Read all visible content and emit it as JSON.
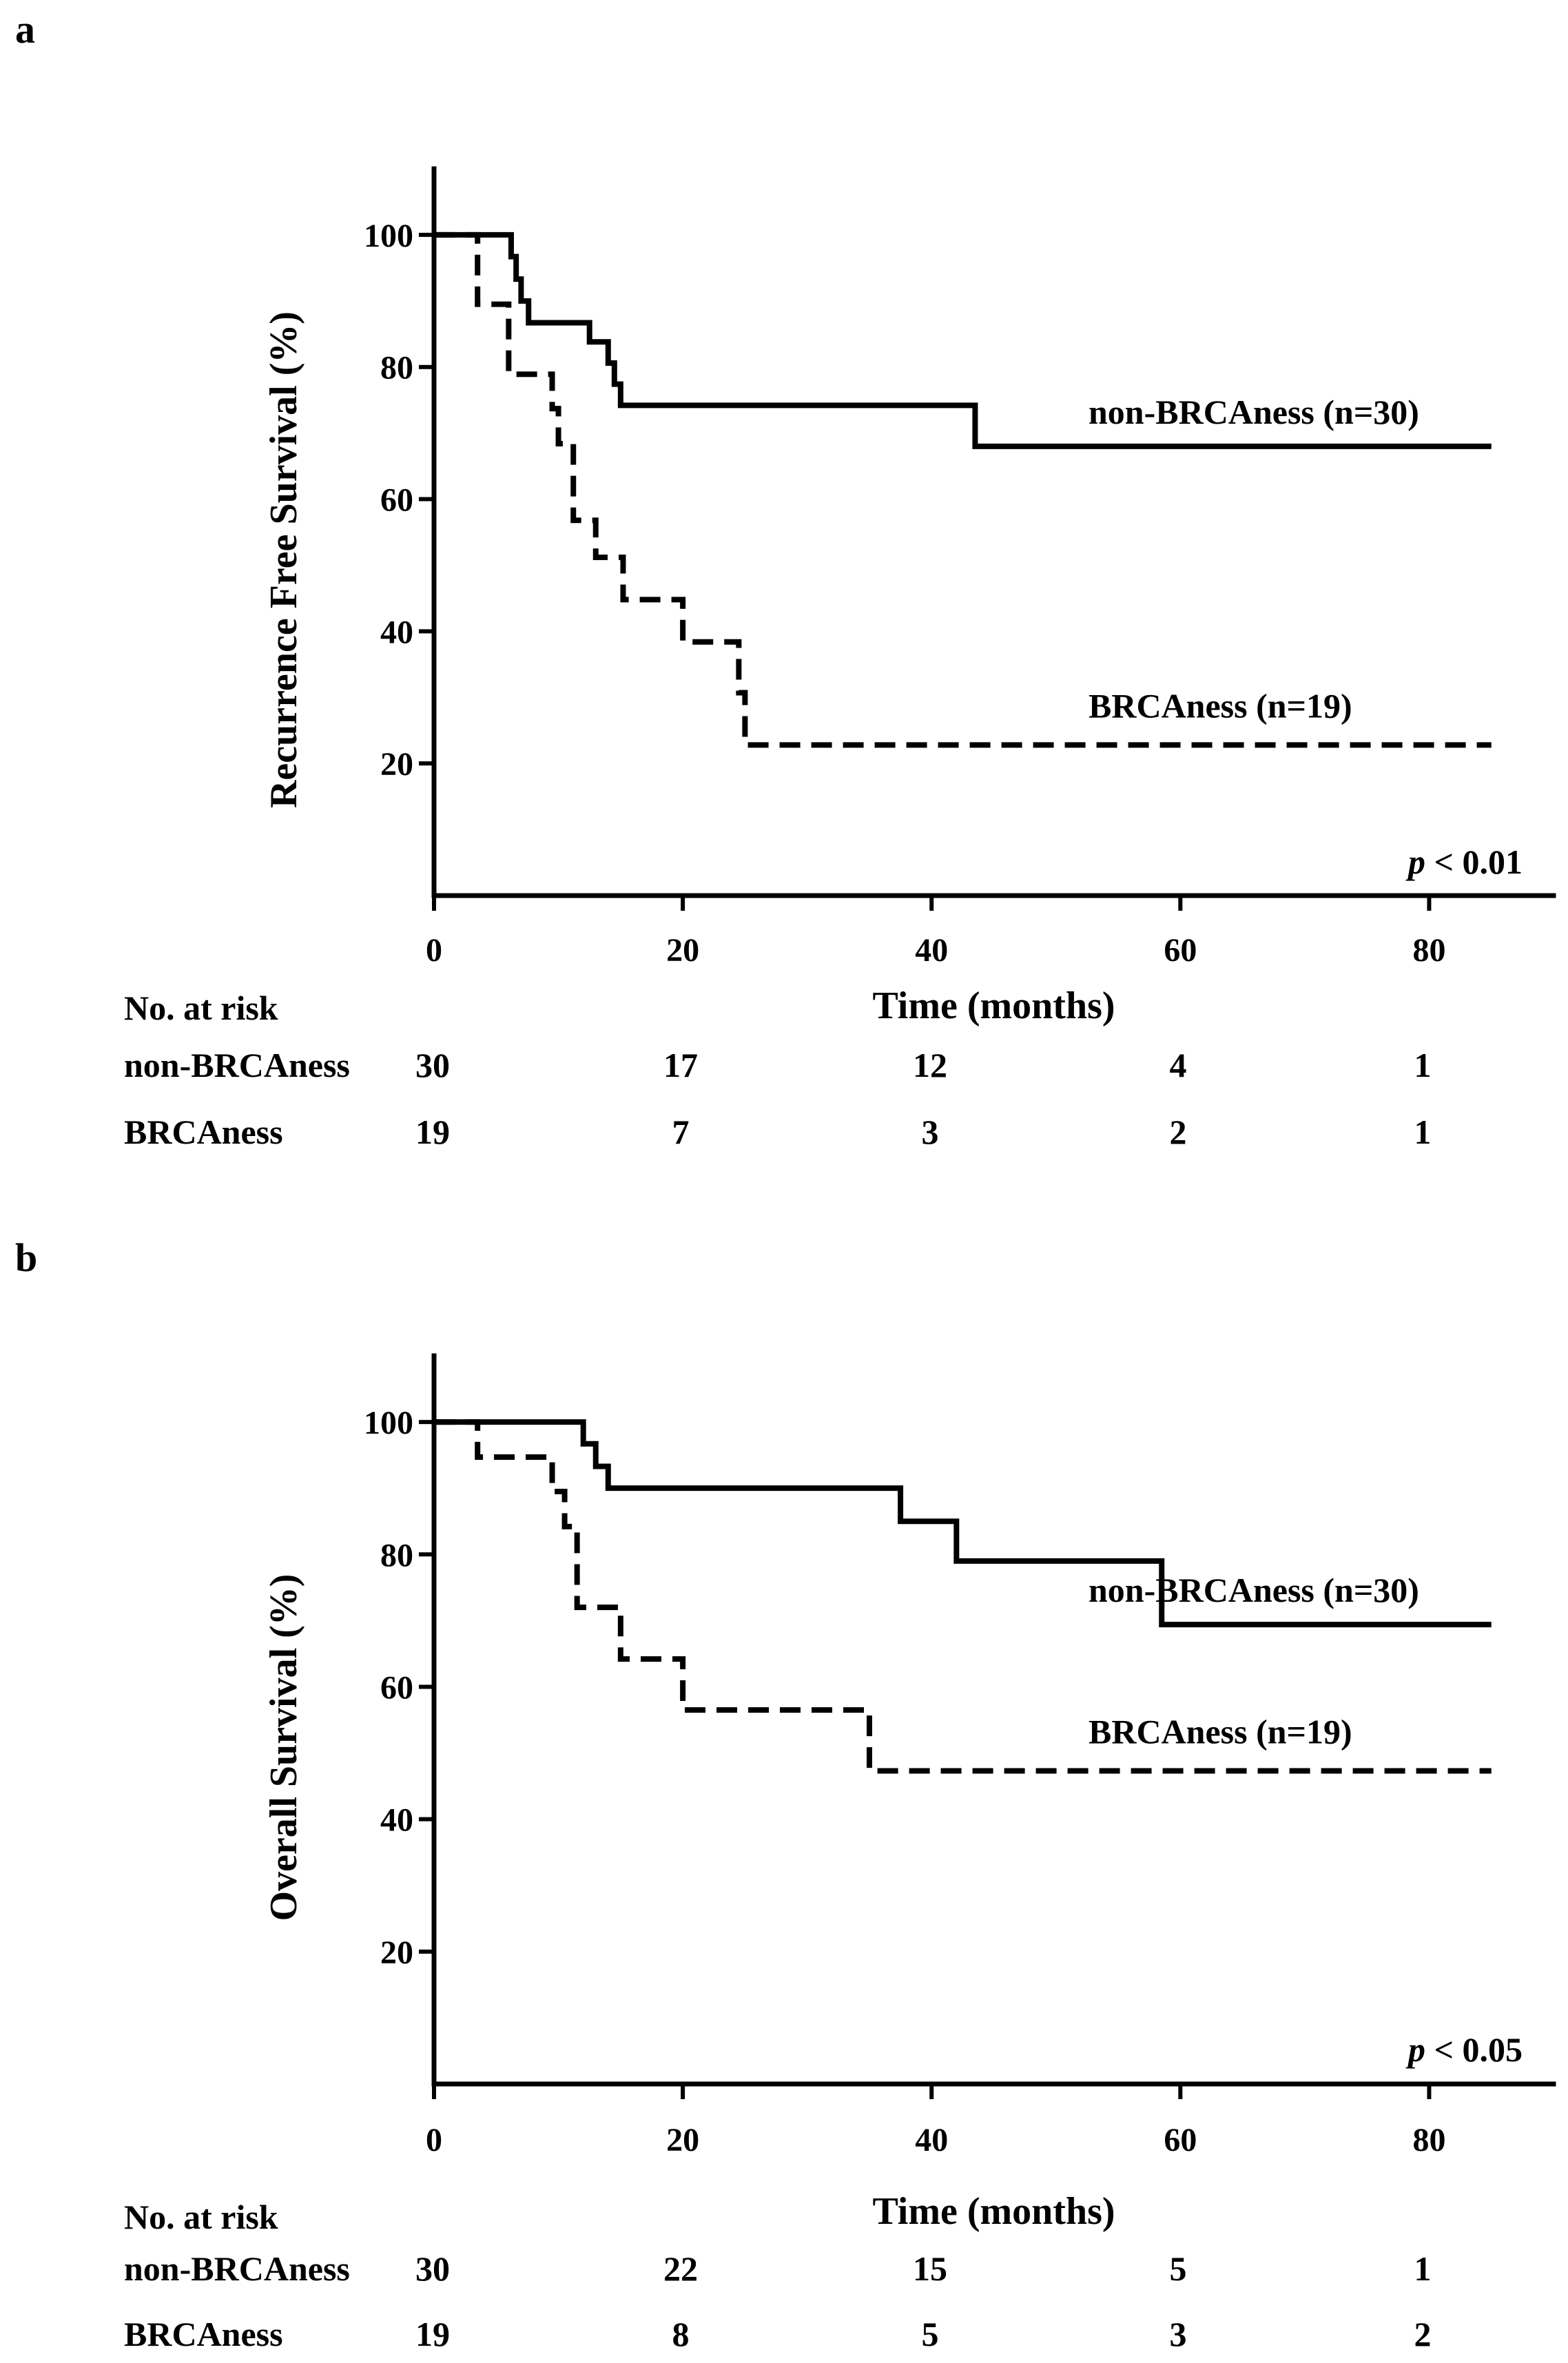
{
  "chart_data": [
    {
      "type": "line",
      "subtype": "kaplan-meier",
      "panel_label": "a",
      "title": "",
      "xlabel": "Time (months)",
      "ylabel": "Recurrence Free Survival (%)",
      "xlim": [
        0,
        90
      ],
      "ylim": [
        0,
        110
      ],
      "xticks": [
        0,
        20,
        40,
        60,
        80
      ],
      "yticks": [
        20,
        40,
        60,
        80,
        100
      ],
      "grid": false,
      "series": [
        {
          "name": "non-BRCAness",
          "legend": "non-BRCAness (n=30)",
          "style": "solid",
          "x": [
            0,
            5.8,
            6.2,
            6.6,
            7.0,
            7.6,
            8.2,
            10.5,
            12.5,
            13.5,
            14.0,
            14.5,
            15.0,
            43.5,
            85
          ],
          "y": [
            100,
            100,
            96.7,
            93.3,
            90.0,
            86.7,
            86.7,
            86.7,
            83.8,
            83.8,
            80.6,
            77.4,
            74.2,
            68.0,
            68.0
          ]
        },
        {
          "name": "BRCAness",
          "legend": "BRCAness (n=19)",
          "style": "dashed",
          "x": [
            0,
            3.5,
            6.0,
            9.5,
            10.0,
            11.2,
            13.0,
            15.2,
            20.0,
            24.5,
            25.0,
            85
          ],
          "y": [
            100,
            89.5,
            78.9,
            73.7,
            68.4,
            56.8,
            51.2,
            44.8,
            38.4,
            30.7,
            22.8,
            22.8
          ]
        }
      ],
      "p_value_label": "p",
      "p_value_text": "< 0.01",
      "risk_table": {
        "header": "No. at risk",
        "timepoints": [
          0,
          20,
          40,
          60,
          80
        ],
        "rows": [
          {
            "label": "non-BRCAness",
            "values": [
              "30",
              "17",
              "12",
              "4",
              "1"
            ]
          },
          {
            "label": "BRCAness",
            "values": [
              "19",
              "7",
              "3",
              "2",
              "1"
            ]
          }
        ]
      }
    },
    {
      "type": "line",
      "subtype": "kaplan-meier",
      "panel_label": "b",
      "title": "",
      "xlabel": "Time (months)",
      "ylabel": "Overall Survival (%)",
      "xlim": [
        0,
        90
      ],
      "ylim": [
        0,
        110
      ],
      "xticks": [
        0,
        20,
        40,
        60,
        80
      ],
      "yticks": [
        20,
        40,
        60,
        80,
        100
      ],
      "grid": false,
      "series": [
        {
          "name": "non-BRCAness",
          "legend": "non-BRCAness (n=30)",
          "style": "solid",
          "x": [
            0,
            11.0,
            12.0,
            13.0,
            14.0,
            37.5,
            42.0,
            58.5,
            85
          ],
          "y": [
            100,
            100,
            96.7,
            93.3,
            90.0,
            85.0,
            79.0,
            69.4,
            69.4
          ]
        },
        {
          "name": "BRCAness",
          "legend": "BRCAness (n=19)",
          "style": "dashed",
          "x": [
            0,
            3.5,
            9.5,
            10.5,
            11.5,
            15.0,
            20.0,
            35.0,
            85
          ],
          "y": [
            100,
            94.7,
            89.5,
            84.2,
            72.0,
            64.2,
            56.5,
            47.3,
            47.3
          ]
        }
      ],
      "p_value_label": "p",
      "p_value_text": "< 0.05",
      "risk_table": {
        "header": "No. at risk",
        "timepoints": [
          0,
          20,
          40,
          60,
          80
        ],
        "rows": [
          {
            "label": "non-BRCAness",
            "values": [
              "30",
              "22",
              "15",
              "5",
              "1"
            ]
          },
          {
            "label": "BRCAness",
            "values": [
              "19",
              "8",
              "5",
              "3",
              "2"
            ]
          }
        ]
      }
    }
  ]
}
